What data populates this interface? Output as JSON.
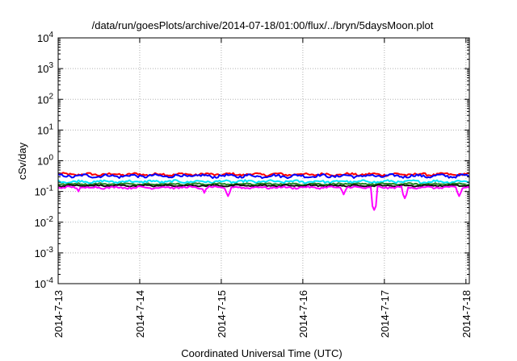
{
  "chart_data": {
    "type": "line",
    "title": "/data/run/goesPlots/archive/2014-07-18/01:00/flux/../bryn/5daysMoon.plot",
    "xlabel": "Coordinated Universal Time (UTC)",
    "ylabel": "cSv/day",
    "yscale": "log",
    "ylim": [
      0.0001,
      10000
    ],
    "y_ticks": [
      {
        "base": "10",
        "exp": "-4",
        "value": 0.0001
      },
      {
        "base": "10",
        "exp": "-3",
        "value": 0.001
      },
      {
        "base": "10",
        "exp": "-2",
        "value": 0.01
      },
      {
        "base": "10",
        "exp": "-1",
        "value": 0.1
      },
      {
        "base": "10",
        "exp": "0",
        "value": 1
      },
      {
        "base": "10",
        "exp": "1",
        "value": 10
      },
      {
        "base": "10",
        "exp": "2",
        "value": 100
      },
      {
        "base": "10",
        "exp": "3",
        "value": 1000
      },
      {
        "base": "10",
        "exp": "4",
        "value": 10000
      }
    ],
    "xlim": [
      "2014-07-13",
      "2014-07-18 01:00"
    ],
    "x_ticks": [
      "2014-7-13",
      "2014-7-14",
      "2014-7-15",
      "2014-7-16",
      "2014-7-17",
      "2014-7-18"
    ],
    "grid": true,
    "legend": "none",
    "series": [
      {
        "color": "#ff0000",
        "level": 0.36,
        "variability": 0.1,
        "dips": []
      },
      {
        "color": "#0000ff",
        "level": 0.32,
        "variability": 0.12,
        "dips": []
      },
      {
        "color": "#00e5ff",
        "level": 0.21,
        "variability": 0.1,
        "dips": []
      },
      {
        "color": "#228b22",
        "level": 0.175,
        "variability": 0.06,
        "dips": []
      },
      {
        "color": "#111111",
        "level": 0.155,
        "variability": 0.06,
        "dips": []
      },
      {
        "color": "#ff00ff",
        "level": 0.135,
        "variability": 0.08,
        "dips": [
          {
            "date": "2014-07-13 06:00",
            "value": 0.1
          },
          {
            "date": "2014-07-14 19:00",
            "value": 0.09
          },
          {
            "date": "2014-07-15 02:00",
            "value": 0.07
          },
          {
            "date": "2014-07-16 12:00",
            "value": 0.08
          },
          {
            "date": "2014-07-16 21:00",
            "value": 0.025
          },
          {
            "date": "2014-07-17 06:00",
            "value": 0.06
          },
          {
            "date": "2014-07-17 22:00",
            "value": 0.07
          }
        ]
      }
    ]
  }
}
